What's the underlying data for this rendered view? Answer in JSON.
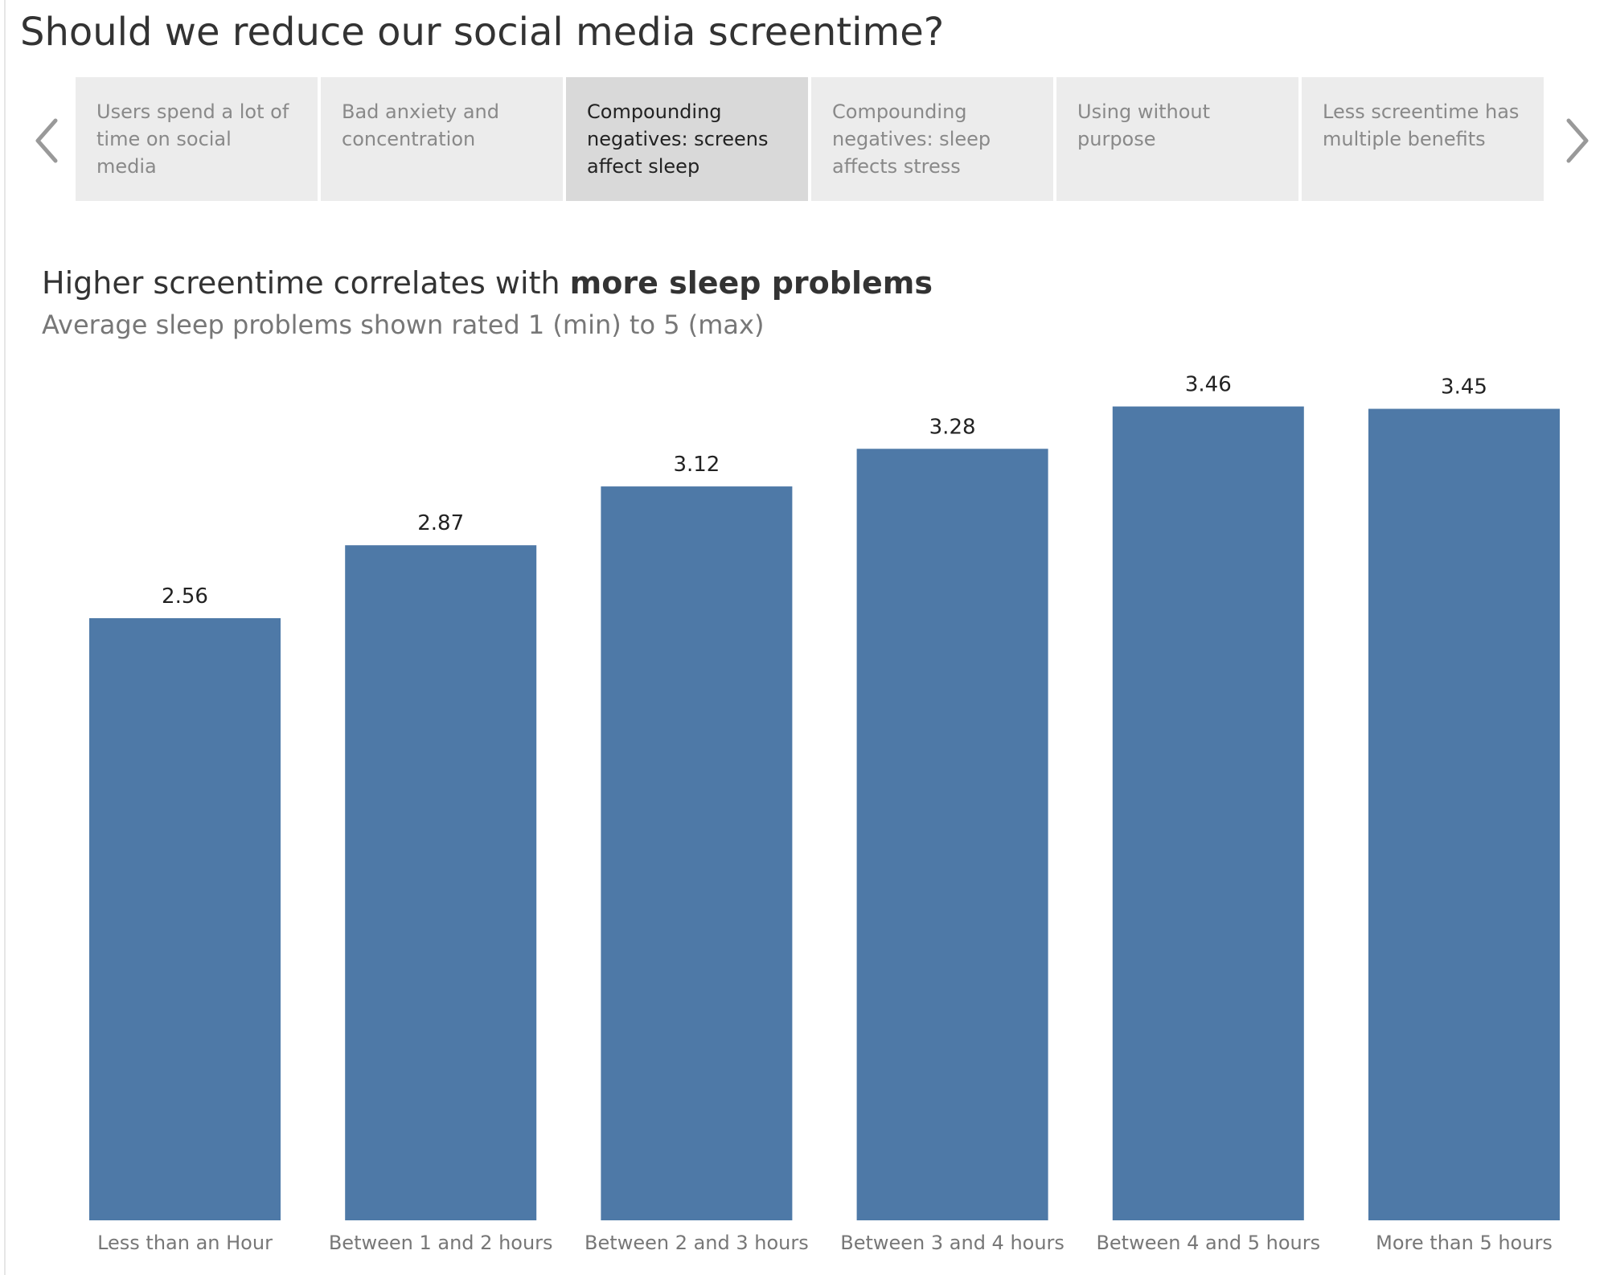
{
  "dashboard": {
    "title": "Should we reduce our social media screentime?"
  },
  "story_points": [
    {
      "label": "Users spend a lot of time on social media",
      "active": false
    },
    {
      "label": "Bad anxiety and concentration",
      "active": false
    },
    {
      "label": "Compounding negatives: screens affect sleep",
      "active": true
    },
    {
      "label": "Compounding negatives: sleep affects stress",
      "active": false
    },
    {
      "label": "Using without purpose",
      "active": false
    },
    {
      "label": "Less screentime has multiple benefits",
      "active": false
    }
  ],
  "navigation": {
    "prev_icon": "chevron-left-icon",
    "next_icon": "chevron-right-icon"
  },
  "chart_data": {
    "type": "bar",
    "title_prefix": "Higher screentime correlates with ",
    "title_emphasis": "more sleep problems",
    "subtitle": "Average sleep problems shown rated 1 (min) to 5 (max)",
    "xlabel": "",
    "ylabel": "",
    "categories": [
      "Less than an Hour",
      "Between 1 and 2 hours",
      "Between 2 and 3 hours",
      "Between 3 and 4 hours",
      "Between 4 and 5 hours",
      "More than 5 hours"
    ],
    "values": [
      2.56,
      2.87,
      3.12,
      3.28,
      3.46,
      3.45
    ],
    "value_labels": [
      "2.56",
      "2.87",
      "3.12",
      "3.28",
      "3.46",
      "3.45"
    ],
    "ylim": [
      0,
      3.5
    ],
    "grid": false,
    "legend": "none",
    "bar_color": "#4e79a7"
  },
  "colors": {
    "bar": "#4e79a7",
    "active_tab": "#d9d9d9",
    "inactive_tab": "#ececec",
    "arrow": "#999999"
  }
}
